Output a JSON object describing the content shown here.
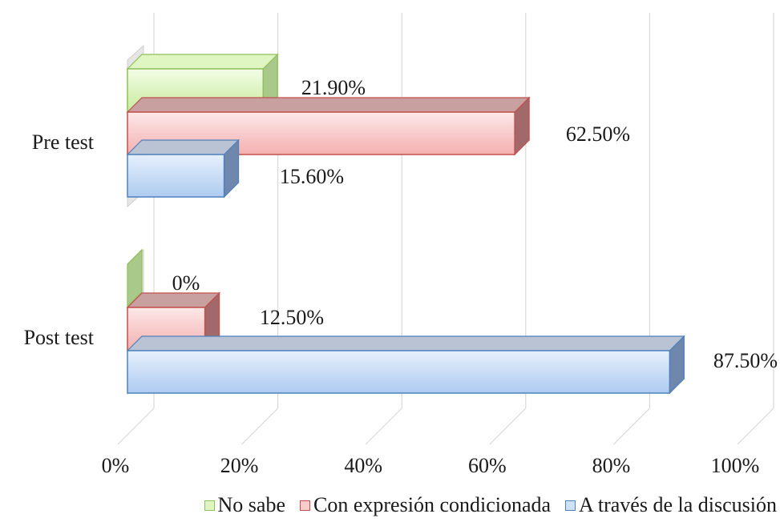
{
  "chart_data": {
    "type": "bar",
    "orientation": "horizontal",
    "style": "3d-clustered",
    "categories": [
      "Pre test",
      "Post test"
    ],
    "series": [
      {
        "name": "No sabe",
        "values": [
          21.9,
          0
        ],
        "labels": [
          "21.90%",
          "0%"
        ],
        "color": "#d9f2b8",
        "edge": "#8fc15a"
      },
      {
        "name": "Con expresión condicionada",
        "values": [
          62.5,
          12.5
        ],
        "labels": [
          "62.50%",
          "12.50%"
        ],
        "color": "#f7c6c6",
        "edge": "#c0504d"
      },
      {
        "name": "A través de la discusión",
        "values": [
          15.6,
          87.5
        ],
        "labels": [
          "15.60%",
          "87.50%"
        ],
        "color": "#c6dbf6",
        "edge": "#4f81bd"
      }
    ],
    "x_ticks": [
      "0%",
      "20%",
      "40%",
      "60%",
      "80%",
      "100%"
    ],
    "xlim": [
      0,
      100
    ],
    "grid": true,
    "legend_position": "bottom"
  }
}
